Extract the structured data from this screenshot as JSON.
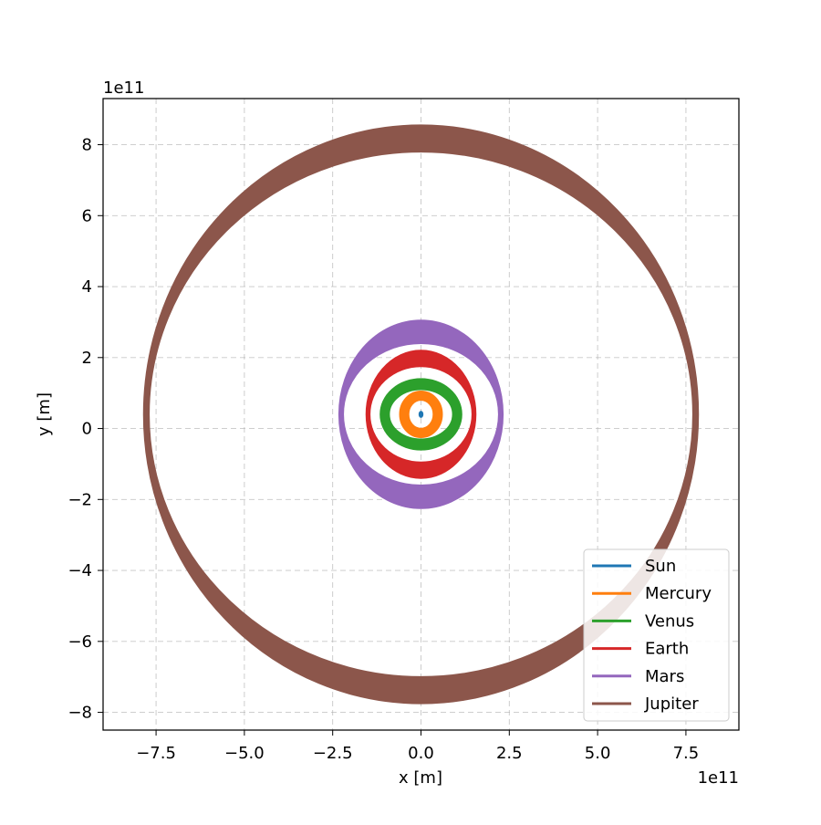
{
  "chart_data": {
    "type": "line",
    "title": "",
    "xlabel": "x [m]",
    "ylabel": "y [m]",
    "x_offset_text": "1e11",
    "y_offset_text": "1e11",
    "xlim": [
      -9.0,
      9.0
    ],
    "ylim": [
      -8.5,
      9.3
    ],
    "x_ticks": [
      -7.5,
      -5.0,
      -2.5,
      0.0,
      2.5,
      5.0,
      7.5
    ],
    "x_tick_labels": [
      "−7.5",
      "−5.0",
      "−2.5",
      "0.0",
      "2.5",
      "5.0",
      "7.5"
    ],
    "y_ticks": [
      -8,
      -6,
      -4,
      -2,
      0,
      2,
      4,
      6,
      8
    ],
    "y_tick_labels": [
      "−8",
      "−6",
      "−4",
      "−2",
      "0",
      "2",
      "4",
      "6",
      "8"
    ],
    "grid": true,
    "legend_position": "lower right",
    "series": [
      {
        "name": "Sun",
        "color": "#1f77b4",
        "center": [
          0.0,
          0.4
        ],
        "rx": [
          0.02,
          0.05
        ],
        "ry": [
          0.03,
          0.08
        ]
      },
      {
        "name": "Mercury",
        "color": "#ff7f0e",
        "center": [
          0.0,
          0.4
        ],
        "rx": [
          0.35,
          0.6
        ],
        "ry": [
          0.4,
          0.65
        ]
      },
      {
        "name": "Venus",
        "color": "#2ca02c",
        "center": [
          0.0,
          0.4
        ],
        "rx": [
          0.9,
          1.15
        ],
        "ry": [
          0.7,
          1.0
        ]
      },
      {
        "name": "Earth",
        "color": "#d62728",
        "center": [
          0.0,
          0.4
        ],
        "rx": [
          1.45,
          1.55
        ],
        "ry": [
          1.35,
          1.8
        ]
      },
      {
        "name": "Mars",
        "color": "#9467bd",
        "center": [
          0.0,
          0.4
        ],
        "rx": [
          2.2,
          2.32
        ],
        "ry": [
          2.0,
          2.65
        ]
      },
      {
        "name": "Jupiter",
        "color": "#8c564b",
        "center": [
          0.0,
          0.4
        ],
        "rx": [
          7.7,
          7.85
        ],
        "ry": [
          7.4,
          8.15
        ]
      }
    ]
  }
}
